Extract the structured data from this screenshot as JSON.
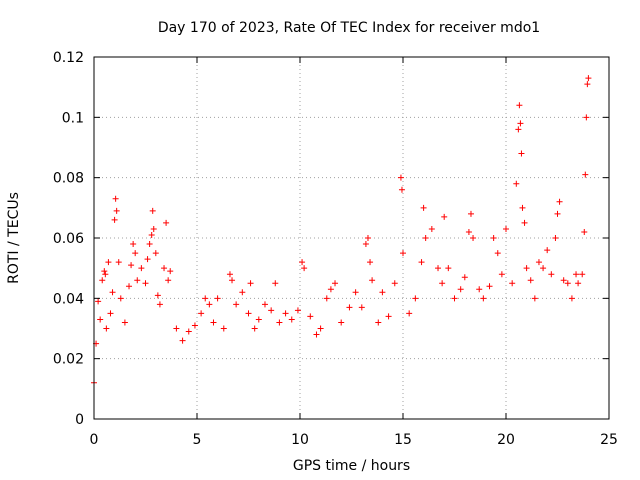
{
  "chart_data": {
    "type": "scatter",
    "title": "Day 170 of 2023, Rate Of TEC Index for receiver mdo1",
    "xlabel": "GPS time / hours",
    "ylabel": "ROTI / TECUs",
    "xlim": [
      0,
      25
    ],
    "ylim": [
      0,
      0.12
    ],
    "x_ticks": [
      "0",
      "5",
      "10",
      "15",
      "20",
      "25"
    ],
    "y_ticks": [
      "0",
      "0.02",
      "0.04",
      "0.06",
      "0.08",
      "0.1",
      "0.12"
    ],
    "grid": true,
    "marker": "plus",
    "color": "#ff0000",
    "series": [
      {
        "points": [
          [
            0.0,
            0.012
          ],
          [
            0.1,
            0.025
          ],
          [
            0.2,
            0.039
          ],
          [
            0.3,
            0.033
          ],
          [
            0.4,
            0.046
          ],
          [
            0.5,
            0.049
          ],
          [
            0.55,
            0.048
          ],
          [
            0.6,
            0.03
          ],
          [
            0.7,
            0.052
          ],
          [
            0.8,
            0.035
          ],
          [
            0.9,
            0.042
          ],
          [
            1.0,
            0.066
          ],
          [
            1.05,
            0.073
          ],
          [
            1.1,
            0.069
          ],
          [
            1.2,
            0.052
          ],
          [
            1.3,
            0.04
          ],
          [
            1.5,
            0.032
          ],
          [
            1.7,
            0.044
          ],
          [
            1.8,
            0.051
          ],
          [
            1.9,
            0.058
          ],
          [
            2.0,
            0.055
          ],
          [
            2.1,
            0.046
          ],
          [
            2.3,
            0.05
          ],
          [
            2.5,
            0.045
          ],
          [
            2.6,
            0.053
          ],
          [
            2.7,
            0.058
          ],
          [
            2.8,
            0.061
          ],
          [
            2.85,
            0.069
          ],
          [
            2.9,
            0.063
          ],
          [
            3.0,
            0.055
          ],
          [
            3.1,
            0.041
          ],
          [
            3.2,
            0.038
          ],
          [
            3.4,
            0.05
          ],
          [
            3.5,
            0.065
          ],
          [
            3.6,
            0.046
          ],
          [
            3.7,
            0.049
          ],
          [
            4.0,
            0.03
          ],
          [
            4.3,
            0.026
          ],
          [
            4.6,
            0.029
          ],
          [
            4.9,
            0.031
          ],
          [
            5.2,
            0.035
          ],
          [
            5.4,
            0.04
          ],
          [
            5.6,
            0.038
          ],
          [
            5.8,
            0.032
          ],
          [
            6.0,
            0.04
          ],
          [
            6.3,
            0.03
          ],
          [
            6.6,
            0.048
          ],
          [
            6.7,
            0.046
          ],
          [
            6.9,
            0.038
          ],
          [
            7.2,
            0.042
          ],
          [
            7.5,
            0.035
          ],
          [
            7.6,
            0.045
          ],
          [
            7.8,
            0.03
          ],
          [
            8.0,
            0.033
          ],
          [
            8.3,
            0.038
          ],
          [
            8.6,
            0.036
          ],
          [
            8.8,
            0.045
          ],
          [
            9.0,
            0.032
          ],
          [
            9.3,
            0.035
          ],
          [
            9.6,
            0.033
          ],
          [
            9.9,
            0.036
          ],
          [
            10.1,
            0.052
          ],
          [
            10.2,
            0.05
          ],
          [
            10.5,
            0.034
          ],
          [
            10.8,
            0.028
          ],
          [
            11.0,
            0.03
          ],
          [
            11.3,
            0.04
          ],
          [
            11.5,
            0.043
          ],
          [
            11.7,
            0.045
          ],
          [
            12.0,
            0.032
          ],
          [
            12.4,
            0.037
          ],
          [
            12.7,
            0.042
          ],
          [
            13.0,
            0.037
          ],
          [
            13.2,
            0.058
          ],
          [
            13.3,
            0.06
          ],
          [
            13.4,
            0.052
          ],
          [
            13.5,
            0.046
          ],
          [
            13.8,
            0.032
          ],
          [
            14.0,
            0.042
          ],
          [
            14.3,
            0.034
          ],
          [
            14.6,
            0.045
          ],
          [
            14.9,
            0.08
          ],
          [
            14.95,
            0.076
          ],
          [
            15.0,
            0.055
          ],
          [
            15.3,
            0.035
          ],
          [
            15.6,
            0.04
          ],
          [
            15.9,
            0.052
          ],
          [
            16.0,
            0.07
          ],
          [
            16.1,
            0.06
          ],
          [
            16.4,
            0.063
          ],
          [
            16.7,
            0.05
          ],
          [
            16.9,
            0.045
          ],
          [
            17.0,
            0.067
          ],
          [
            17.2,
            0.05
          ],
          [
            17.5,
            0.04
          ],
          [
            17.8,
            0.043
          ],
          [
            18.0,
            0.047
          ],
          [
            18.2,
            0.062
          ],
          [
            18.3,
            0.068
          ],
          [
            18.4,
            0.06
          ],
          [
            18.7,
            0.043
          ],
          [
            18.9,
            0.04
          ],
          [
            19.2,
            0.044
          ],
          [
            19.4,
            0.06
          ],
          [
            19.6,
            0.055
          ],
          [
            19.8,
            0.048
          ],
          [
            20.0,
            0.063
          ],
          [
            20.3,
            0.045
          ],
          [
            20.5,
            0.078
          ],
          [
            20.6,
            0.096
          ],
          [
            20.65,
            0.104
          ],
          [
            20.7,
            0.098
          ],
          [
            20.75,
            0.088
          ],
          [
            20.8,
            0.07
          ],
          [
            20.9,
            0.065
          ],
          [
            21.0,
            0.05
          ],
          [
            21.2,
            0.046
          ],
          [
            21.4,
            0.04
          ],
          [
            21.6,
            0.052
          ],
          [
            21.8,
            0.05
          ],
          [
            22.0,
            0.056
          ],
          [
            22.2,
            0.048
          ],
          [
            22.4,
            0.06
          ],
          [
            22.5,
            0.068
          ],
          [
            22.6,
            0.072
          ],
          [
            22.8,
            0.046
          ],
          [
            23.0,
            0.045
          ],
          [
            23.2,
            0.04
          ],
          [
            23.4,
            0.048
          ],
          [
            23.5,
            0.045
          ],
          [
            23.7,
            0.048
          ],
          [
            23.8,
            0.062
          ],
          [
            23.85,
            0.081
          ],
          [
            23.9,
            0.1
          ],
          [
            23.95,
            0.111
          ],
          [
            24.0,
            0.113
          ]
        ]
      }
    ]
  }
}
